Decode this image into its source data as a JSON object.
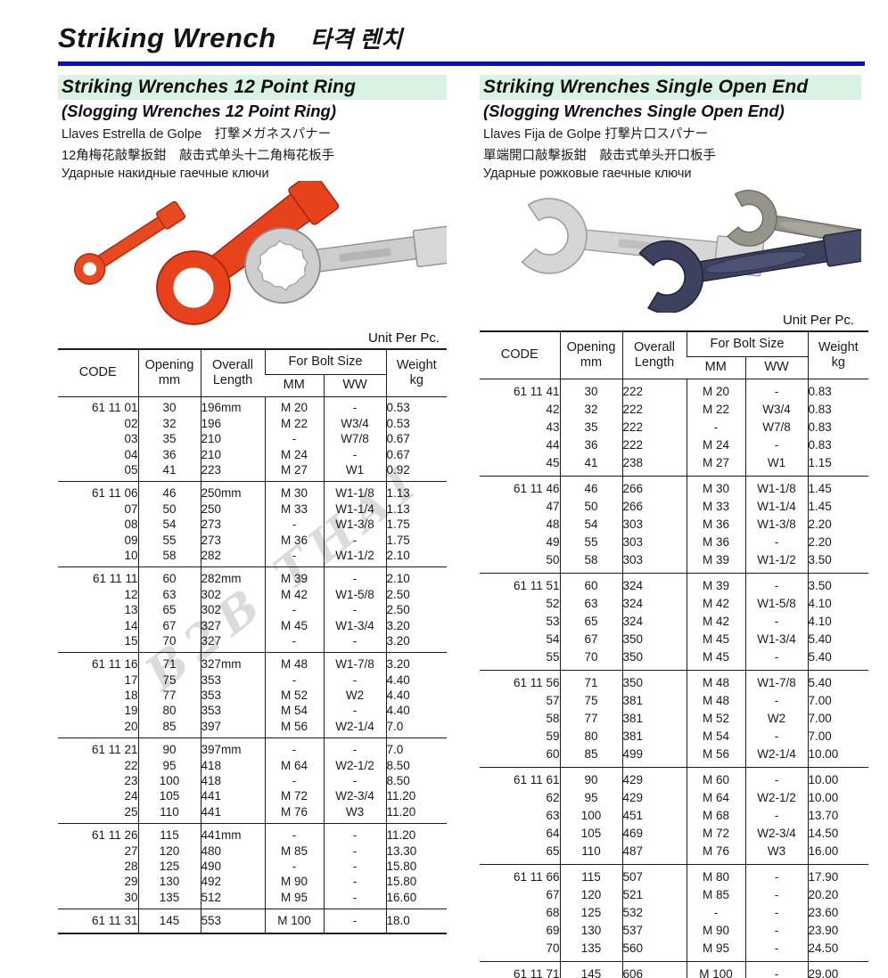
{
  "page": {
    "title_en": "Striking Wrench",
    "title_ko": "타격 렌치",
    "watermark": "B2B THAI"
  },
  "sections": [
    {
      "heading": "Striking Wrenches 12 Point Ring",
      "subheading": "(Slogging Wrenches 12 Point Ring)",
      "lang_line1": "Llaves Estrella de Golpe　打撃メガネスパナー",
      "lang_line2": "12角梅花敲擊扳鉗　敲击式单头十二角梅花板手",
      "lang_line3": "Ударные накидные гаечные ключи",
      "unit_label": "Unit Per Pc.",
      "table": {
        "headers": {
          "code": "CODE",
          "opening": "Opening",
          "opening_unit": "mm",
          "overall1": "Overall",
          "overall2": "Length",
          "bolt": "For Bolt Size",
          "mm": "MM",
          "ww": "WW",
          "weight": "Weight",
          "weight_unit": "kg"
        },
        "groups": [
          {
            "rows": [
              {
                "code": "61 11 01",
                "opening": "30",
                "length": "196mm",
                "mm": "M 20",
                "ww": "-",
                "weight": "0.53"
              },
              {
                "code": "02",
                "opening": "32",
                "length": "196",
                "mm": "M 22",
                "ww": "W3/4",
                "weight": "0.53"
              },
              {
                "code": "03",
                "opening": "35",
                "length": "210",
                "mm": "-",
                "ww": "W7/8",
                "weight": "0.67"
              },
              {
                "code": "04",
                "opening": "36",
                "length": "210",
                "mm": "M 24",
                "ww": "-",
                "weight": "0.67"
              },
              {
                "code": "05",
                "opening": "41",
                "length": "223",
                "mm": "M 27",
                "ww": "W1",
                "weight": "0.92"
              }
            ]
          },
          {
            "rows": [
              {
                "code": "61 11 06",
                "opening": "46",
                "length": "250mm",
                "mm": "M 30",
                "ww": "W1-1/8",
                "weight": "1.13"
              },
              {
                "code": "07",
                "opening": "50",
                "length": "250",
                "mm": "M 33",
                "ww": "W1-1/4",
                "weight": "1.13"
              },
              {
                "code": "08",
                "opening": "54",
                "length": "273",
                "mm": "-",
                "ww": "W1-3/8",
                "weight": "1.75"
              },
              {
                "code": "09",
                "opening": "55",
                "length": "273",
                "mm": "M 36",
                "ww": "-",
                "weight": "1.75"
              },
              {
                "code": "10",
                "opening": "58",
                "length": "282",
                "mm": "-",
                "ww": "W1-1/2",
                "weight": "2.10"
              }
            ]
          },
          {
            "rows": [
              {
                "code": "61 11 11",
                "opening": "60",
                "length": "282mm",
                "mm": "M 39",
                "ww": "-",
                "weight": "2.10"
              },
              {
                "code": "12",
                "opening": "63",
                "length": "302",
                "mm": "M 42",
                "ww": "W1-5/8",
                "weight": "2.50"
              },
              {
                "code": "13",
                "opening": "65",
                "length": "302",
                "mm": "-",
                "ww": "-",
                "weight": "2.50"
              },
              {
                "code": "14",
                "opening": "67",
                "length": "327",
                "mm": "M 45",
                "ww": "W1-3/4",
                "weight": "3.20"
              },
              {
                "code": "15",
                "opening": "70",
                "length": "327",
                "mm": "-",
                "ww": "-",
                "weight": "3.20"
              }
            ]
          },
          {
            "rows": [
              {
                "code": "61 11 16",
                "opening": "71",
                "length": "327mm",
                "mm": "M 48",
                "ww": "W1-7/8",
                "weight": "3.20"
              },
              {
                "code": "17",
                "opening": "75",
                "length": "353",
                "mm": "-",
                "ww": "-",
                "weight": "4.40"
              },
              {
                "code": "18",
                "opening": "77",
                "length": "353",
                "mm": "M 52",
                "ww": "W2",
                "weight": "4.40"
              },
              {
                "code": "19",
                "opening": "80",
                "length": "353",
                "mm": "M 54",
                "ww": "-",
                "weight": "4.40"
              },
              {
                "code": "20",
                "opening": "85",
                "length": "397",
                "mm": "M 56",
                "ww": "W2-1/4",
                "weight": "7.0"
              }
            ]
          },
          {
            "rows": [
              {
                "code": "61 11 21",
                "opening": "90",
                "length": "397mm",
                "mm": "-",
                "ww": "-",
                "weight": "7.0"
              },
              {
                "code": "22",
                "opening": "95",
                "length": "418",
                "mm": "M 64",
                "ww": "W2-1/2",
                "weight": "8.50"
              },
              {
                "code": "23",
                "opening": "100",
                "length": "418",
                "mm": "-",
                "ww": "-",
                "weight": "8.50"
              },
              {
                "code": "24",
                "opening": "105",
                "length": "441",
                "mm": "M 72",
                "ww": "W2-3/4",
                "weight": "11.20"
              },
              {
                "code": "25",
                "opening": "110",
                "length": "441",
                "mm": "M 76",
                "ww": "W3",
                "weight": "11.20"
              }
            ]
          },
          {
            "rows": [
              {
                "code": "61 11 26",
                "opening": "115",
                "length": "441mm",
                "mm": "-",
                "ww": "-",
                "weight": "11.20"
              },
              {
                "code": "27",
                "opening": "120",
                "length": "480",
                "mm": "M 85",
                "ww": "-",
                "weight": "13.30"
              },
              {
                "code": "28",
                "opening": "125",
                "length": "490",
                "mm": "-",
                "ww": "-",
                "weight": "15.80"
              },
              {
                "code": "29",
                "opening": "130",
                "length": "492",
                "mm": "M 90",
                "ww": "-",
                "weight": "15.80"
              },
              {
                "code": "30",
                "opening": "135",
                "length": "512",
                "mm": "M 95",
                "ww": "-",
                "weight": "16.60"
              }
            ]
          },
          {
            "rows": [
              {
                "code": "61 11 31",
                "opening": "145",
                "length": "553",
                "mm": "M 100",
                "ww": "-",
                "weight": "18.0"
              }
            ]
          }
        ]
      }
    },
    {
      "heading": "Striking Wrenches Single Open End",
      "subheading": "(Slogging Wrenches Single Open End)",
      "lang_line1": "Llaves Fija de Golpe 打撃片口スパナー",
      "lang_line2": "單端開口敲擊扳鉗　敲击式单头开口板手",
      "lang_line3": "Ударные рожковые гаечные ключи",
      "unit_label": "Unit Per Pc.",
      "table": {
        "headers": {
          "code": "CODE",
          "opening": "Opening",
          "opening_unit": "mm",
          "overall1": "Overall",
          "overall2": "Length",
          "bolt": "For Bolt Size",
          "mm": "MM",
          "ww": "WW",
          "weight": "Weight",
          "weight_unit": "kg"
        },
        "groups": [
          {
            "rows": [
              {
                "code": "61 11 41",
                "opening": "30",
                "length": "222",
                "mm": "M 20",
                "ww": "-",
                "weight": "0.83"
              },
              {
                "code": "42",
                "opening": "32",
                "length": "222",
                "mm": "M 22",
                "ww": "W3/4",
                "weight": "0.83"
              },
              {
                "code": "43",
                "opening": "35",
                "length": "222",
                "mm": "-",
                "ww": "W7/8",
                "weight": "0.83"
              },
              {
                "code": "44",
                "opening": "36",
                "length": "222",
                "mm": "M 24",
                "ww": "-",
                "weight": "0.83"
              },
              {
                "code": "45",
                "opening": "41",
                "length": "238",
                "mm": "M 27",
                "ww": "W1",
                "weight": "1.15"
              }
            ]
          },
          {
            "rows": [
              {
                "code": "61 11 46",
                "opening": "46",
                "length": "266",
                "mm": "M 30",
                "ww": "W1-1/8",
                "weight": "1.45"
              },
              {
                "code": "47",
                "opening": "50",
                "length": "266",
                "mm": "M 33",
                "ww": "W1-1/4",
                "weight": "1.45"
              },
              {
                "code": "48",
                "opening": "54",
                "length": "303",
                "mm": "M 36",
                "ww": "W1-3/8",
                "weight": "2.20"
              },
              {
                "code": "49",
                "opening": "55",
                "length": "303",
                "mm": "M 36",
                "ww": "-",
                "weight": "2.20"
              },
              {
                "code": "50",
                "opening": "58",
                "length": "303",
                "mm": "M 39",
                "ww": "W1-1/2",
                "weight": "3.50"
              }
            ]
          },
          {
            "rows": [
              {
                "code": "61 11 51",
                "opening": "60",
                "length": "324",
                "mm": "M 39",
                "ww": "-",
                "weight": "3.50"
              },
              {
                "code": "52",
                "opening": "63",
                "length": "324",
                "mm": "M 42",
                "ww": "W1-5/8",
                "weight": "4.10"
              },
              {
                "code": "53",
                "opening": "65",
                "length": "324",
                "mm": "M 42",
                "ww": "-",
                "weight": "4.10"
              },
              {
                "code": "54",
                "opening": "67",
                "length": "350",
                "mm": "M 45",
                "ww": "W1-3/4",
                "weight": "5.40"
              },
              {
                "code": "55",
                "opening": "70",
                "length": "350",
                "mm": "M 45",
                "ww": "-",
                "weight": "5.40"
              }
            ]
          },
          {
            "rows": [
              {
                "code": "61 11 56",
                "opening": "71",
                "length": "350",
                "mm": "M 48",
                "ww": "W1-7/8",
                "weight": "5.40"
              },
              {
                "code": "57",
                "opening": "75",
                "length": "381",
                "mm": "M 48",
                "ww": "-",
                "weight": "7.00"
              },
              {
                "code": "58",
                "opening": "77",
                "length": "381",
                "mm": "M 52",
                "ww": "W2",
                "weight": "7.00"
              },
              {
                "code": "59",
                "opening": "80",
                "length": "381",
                "mm": "M 54",
                "ww": "-",
                "weight": "7.00"
              },
              {
                "code": "60",
                "opening": "85",
                "length": "499",
                "mm": "M 56",
                "ww": "W2-1/4",
                "weight": "10.00"
              }
            ]
          },
          {
            "rows": [
              {
                "code": "61 11 61",
                "opening": "90",
                "length": "429",
                "mm": "M 60",
                "ww": "-",
                "weight": "10.00"
              },
              {
                "code": "62",
                "opening": "95",
                "length": "429",
                "mm": "M 64",
                "ww": "W2-1/2",
                "weight": "10.00"
              },
              {
                "code": "63",
                "opening": "100",
                "length": "451",
                "mm": "M 68",
                "ww": "-",
                "weight": "13.70"
              },
              {
                "code": "64",
                "opening": "105",
                "length": "469",
                "mm": "M 72",
                "ww": "W2-3/4",
                "weight": "14.50"
              },
              {
                "code": "65",
                "opening": "110",
                "length": "487",
                "mm": "M 76",
                "ww": "W3",
                "weight": "16.00"
              }
            ]
          },
          {
            "rows": [
              {
                "code": "61 11 66",
                "opening": "115",
                "length": "507",
                "mm": "M 80",
                "ww": "-",
                "weight": "17.90"
              },
              {
                "code": "67",
                "opening": "120",
                "length": "521",
                "mm": "M 85",
                "ww": "-",
                "weight": "20.20"
              },
              {
                "code": "68",
                "opening": "125",
                "length": "532",
                "mm": "-",
                "ww": "-",
                "weight": "23.60"
              },
              {
                "code": "69",
                "opening": "130",
                "length": "537",
                "mm": "M 90",
                "ww": "-",
                "weight": "23.90"
              },
              {
                "code": "70",
                "opening": "135",
                "length": "560",
                "mm": "M 95",
                "ww": "-",
                "weight": "24.50"
              }
            ]
          },
          {
            "rows": [
              {
                "code": "61 11 71",
                "opening": "145",
                "length": "606",
                "mm": "M 100",
                "ww": "-",
                "weight": "29.00"
              }
            ]
          }
        ]
      }
    }
  ]
}
